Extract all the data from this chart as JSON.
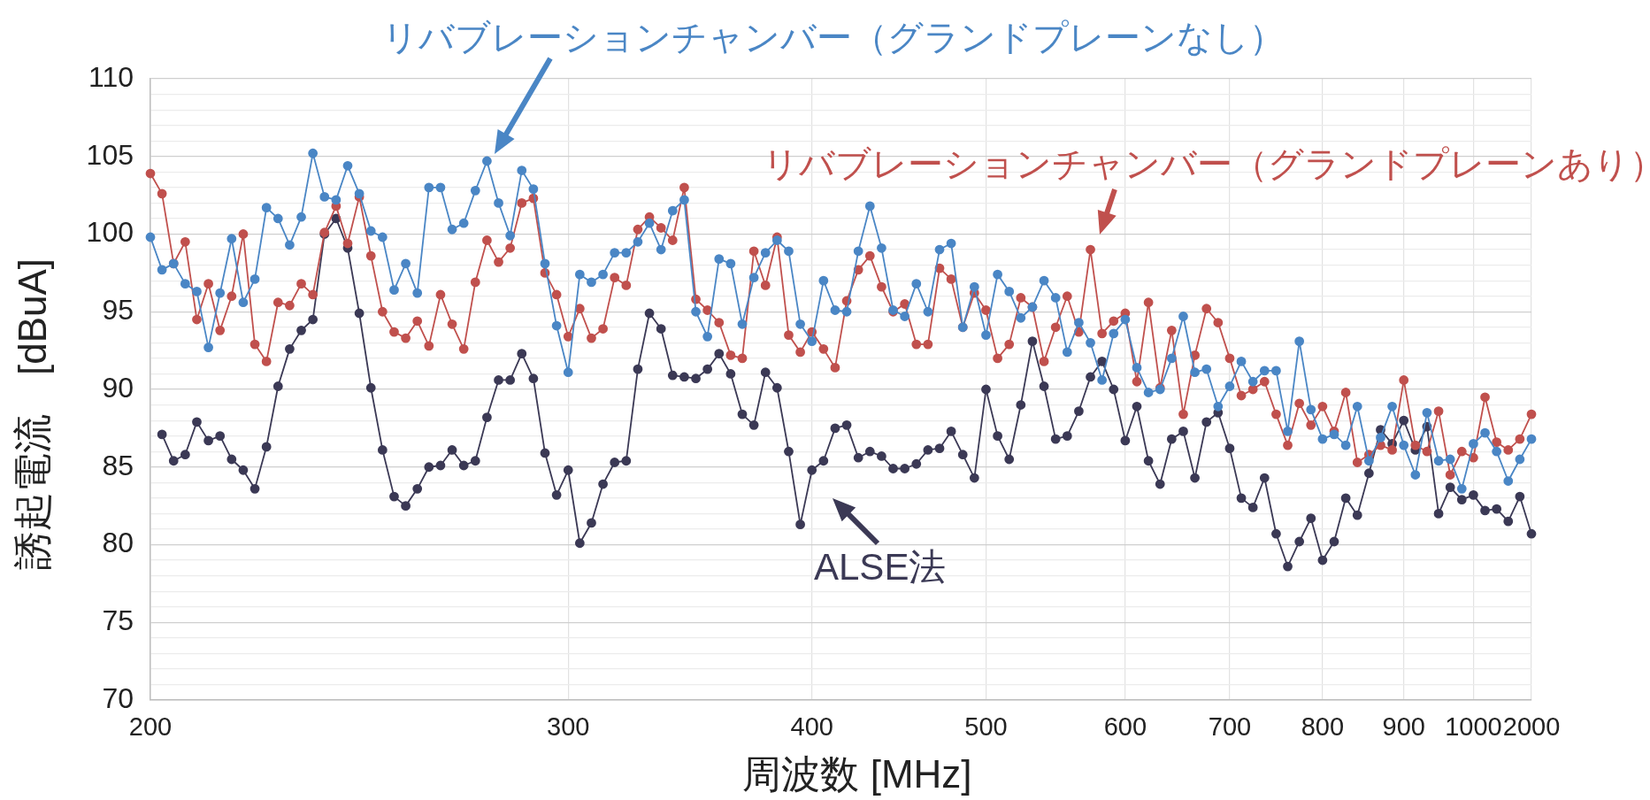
{
  "chart_data": {
    "type": "line",
    "xlabel": "周波数 [MHz]",
    "ylabel": "誘起電流　[dBuA]",
    "categories": [
      "200",
      null,
      null,
      null,
      null,
      null,
      null,
      null,
      null,
      null,
      null,
      null,
      null,
      null,
      null,
      null,
      null,
      null,
      null,
      null,
      null,
      null,
      null,
      null,
      null,
      null,
      null,
      null,
      null,
      null,
      null,
      null,
      null,
      null,
      null,
      null,
      "300",
      null,
      null,
      null,
      null,
      null,
      null,
      null,
      null,
      null,
      null,
      null,
      null,
      null,
      null,
      null,
      null,
      null,
      null,
      null,
      null,
      "400",
      null,
      null,
      null,
      null,
      null,
      null,
      null,
      null,
      null,
      null,
      null,
      null,
      null,
      null,
      "500",
      null,
      null,
      null,
      null,
      null,
      null,
      null,
      null,
      null,
      null,
      null,
      "600",
      null,
      null,
      null,
      null,
      null,
      null,
      null,
      null,
      "700",
      null,
      null,
      null,
      null,
      null,
      null,
      null,
      "800",
      null,
      null,
      null,
      null,
      null,
      null,
      "900",
      null,
      null,
      null,
      null,
      null,
      "1000",
      null,
      null,
      null,
      null,
      "2000"
    ],
    "series": [
      {
        "name": "リバブレーションチャンバー（グランドプレーンなし）",
        "color": "#4a86c5",
        "values": [
          99.8,
          97.7,
          98.1,
          96.8,
          96.3,
          92.7,
          96.2,
          99.7,
          95.6,
          97.1,
          101.7,
          101.0,
          99.3,
          101.1,
          105.2,
          102.4,
          102.2,
          104.4,
          102.6,
          100.2,
          99.8,
          96.4,
          98.1,
          96.2,
          103.0,
          103.0,
          100.3,
          100.7,
          102.8,
          104.7,
          102.0,
          99.9,
          104.1,
          102.9,
          98.1,
          94.1,
          91.1,
          97.4,
          96.9,
          97.4,
          98.8,
          98.8,
          99.5,
          100.7,
          99.0,
          101.5,
          102.2,
          95.0,
          93.4,
          98.4,
          98.1,
          94.2,
          97.2,
          98.8,
          99.6,
          98.9,
          94.2,
          93.1,
          97.0,
          95.1,
          95.0,
          98.9,
          101.8,
          99.1,
          95.1,
          94.7,
          96.8,
          95.0,
          99.0,
          99.4,
          94.0,
          96.6,
          93.5,
          97.4,
          96.3,
          94.6,
          95.3,
          97.0,
          95.9,
          92.4,
          94.3,
          93.0,
          90.6,
          93.6,
          94.5,
          91.4,
          89.8,
          90.0,
          92.0,
          94.7,
          91.1,
          91.3,
          88.9,
          90.2,
          91.8,
          90.5,
          91.2,
          91.2,
          87.3,
          93.1,
          88.7,
          86.8,
          87.1,
          86.4,
          88.9,
          85.4,
          86.9,
          88.9,
          86.4,
          84.5,
          88.5,
          85.4,
          85.5,
          83.6,
          86.5,
          87.2,
          86.0,
          84.1,
          85.5,
          86.8
        ]
      },
      {
        "name": "リバブレーションチャンバー（グランドプレーンあり）",
        "color": "#c0504d",
        "values": [
          103.9,
          102.6,
          98.1,
          99.5,
          94.5,
          96.8,
          93.8,
          96.0,
          100.0,
          92.9,
          91.8,
          95.6,
          95.4,
          96.8,
          96.1,
          100.1,
          101.8,
          99.4,
          102.4,
          98.6,
          95.0,
          93.7,
          93.3,
          94.4,
          92.8,
          96.1,
          94.2,
          92.6,
          96.9,
          99.6,
          98.2,
          99.1,
          102.0,
          102.3,
          97.5,
          96.1,
          93.4,
          95.2,
          93.3,
          93.9,
          97.2,
          96.7,
          100.3,
          101.1,
          100.4,
          99.6,
          103.0,
          95.8,
          95.1,
          94.3,
          92.2,
          92.0,
          98.9,
          96.7,
          99.8,
          93.5,
          92.4,
          93.7,
          92.6,
          91.4,
          95.7,
          97.7,
          98.6,
          96.6,
          95.0,
          95.5,
          92.9,
          92.9,
          97.8,
          97.1,
          94.0,
          96.2,
          95.1,
          92.0,
          92.9,
          95.9,
          95.3,
          91.8,
          94.0,
          96.0,
          93.7,
          99.0,
          93.6,
          94.4,
          94.9,
          90.5,
          95.6,
          90.1,
          93.8,
          88.4,
          92.2,
          95.2,
          94.3,
          92.0,
          89.6,
          90.0,
          90.5,
          88.4,
          86.4,
          89.1,
          87.7,
          88.9,
          87.3,
          89.8,
          85.3,
          85.8,
          86.4,
          86.1,
          90.6,
          86.4,
          86.0,
          88.6,
          84.5,
          86.0,
          85.6,
          89.5,
          86.6,
          86.1,
          86.8,
          88.4
        ]
      },
      {
        "name": "ALSE法",
        "color": "#3b3955",
        "values": [
          null,
          87.1,
          85.4,
          85.8,
          87.9,
          86.7,
          87.0,
          85.5,
          84.8,
          83.6,
          86.3,
          90.2,
          92.6,
          93.8,
          94.5,
          100.0,
          101.0,
          99.1,
          94.9,
          90.1,
          86.1,
          83.1,
          82.5,
          83.6,
          85.0,
          85.1,
          86.1,
          85.1,
          85.4,
          88.2,
          90.6,
          90.6,
          92.3,
          90.7,
          85.9,
          83.2,
          84.8,
          80.1,
          81.4,
          83.9,
          85.3,
          85.4,
          91.3,
          94.9,
          93.9,
          90.9,
          90.8,
          90.7,
          91.3,
          92.3,
          91.0,
          88.4,
          87.7,
          91.1,
          90.1,
          86.0,
          81.3,
          84.8,
          85.4,
          87.5,
          87.7,
          85.6,
          86.0,
          85.7,
          84.9,
          84.9,
          85.2,
          86.1,
          86.2,
          87.3,
          85.8,
          84.3,
          90.0,
          87.0,
          85.5,
          89.0,
          93.1,
          90.2,
          86.8,
          87.0,
          88.6,
          90.8,
          91.8,
          90.0,
          86.7,
          88.9,
          85.4,
          83.9,
          86.8,
          87.3,
          84.3,
          87.9,
          88.5,
          86.2,
          83.0,
          82.4,
          84.3,
          80.7,
          78.6,
          80.2,
          81.7,
          79.0,
          80.2,
          83.0,
          81.9,
          84.6,
          87.4,
          86.5,
          88.0,
          86.1,
          87.6,
          82.0,
          83.7,
          82.9,
          83.2,
          82.2,
          82.3,
          81.5,
          83.1,
          80.7
        ]
      }
    ],
    "ylim": [
      70,
      110
    ],
    "yticks": [
      70,
      {
        "value": 71,
        "label": null
      },
      {
        "value": 72,
        "label": null
      },
      {
        "value": 73,
        "label": null
      },
      {
        "value": 74,
        "label": null
      },
      75,
      {
        "value": 76,
        "label": null
      },
      {
        "value": 77,
        "label": null
      },
      {
        "value": 78,
        "label": null
      },
      {
        "value": 79,
        "label": null
      },
      80,
      {
        "value": 81,
        "label": null
      },
      {
        "value": 82,
        "label": null
      },
      {
        "value": 83,
        "label": null
      },
      {
        "value": 84,
        "label": null
      },
      85,
      {
        "value": 86,
        "label": null
      },
      {
        "value": 87,
        "label": null
      },
      {
        "value": 88,
        "label": null
      },
      {
        "value": 89,
        "label": null
      },
      90,
      {
        "value": 91,
        "label": null
      },
      {
        "value": 92,
        "label": null
      },
      {
        "value": 93,
        "label": null
      },
      {
        "value": 94,
        "label": null
      },
      95,
      {
        "value": 96,
        "label": null
      },
      {
        "value": 97,
        "label": null
      },
      {
        "value": 98,
        "label": null
      },
      {
        "value": 99,
        "label": null
      },
      100,
      {
        "value": 101,
        "label": null
      },
      {
        "value": 102,
        "label": null
      },
      {
        "value": 103,
        "label": null
      },
      {
        "value": 104,
        "label": null
      },
      105,
      {
        "value": 106,
        "label": null
      },
      {
        "value": 107,
        "label": null
      },
      {
        "value": 108,
        "label": null
      },
      {
        "value": 109,
        "label": null
      },
      110
    ],
    "grid": true,
    "marker": "circle",
    "line_style": "solid"
  }
}
